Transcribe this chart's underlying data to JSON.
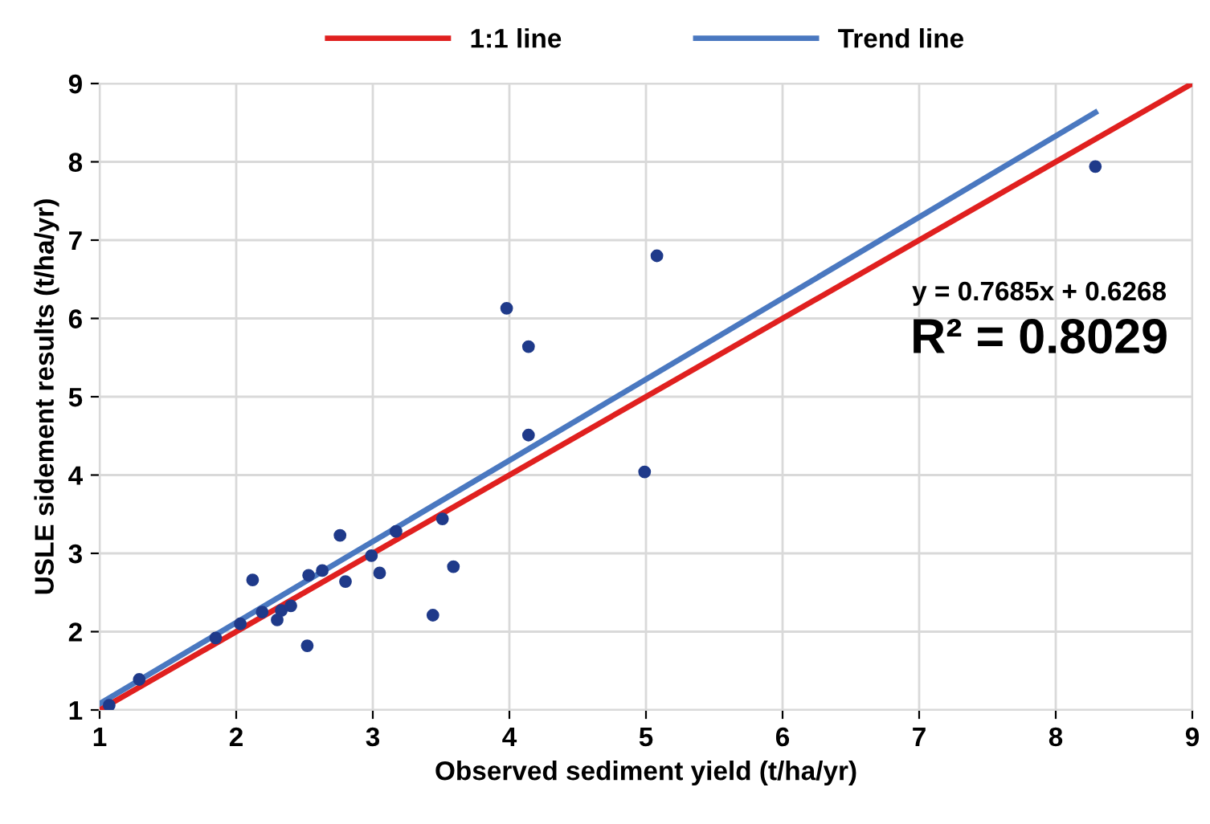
{
  "chart_data": {
    "type": "scatter",
    "xlabel": "Observed sediment yield (t/ha/yr)",
    "ylabel": "USLE sidement results (t/ha/yr)",
    "xlim": [
      1,
      9
    ],
    "ylim": [
      1,
      9
    ],
    "xticks": [
      1,
      2,
      3,
      4,
      5,
      6,
      7,
      8,
      9
    ],
    "yticks": [
      1,
      2,
      3,
      4,
      5,
      6,
      7,
      8,
      9
    ],
    "grid": true,
    "legend": "top",
    "series": [
      {
        "name": "1:1 line",
        "type": "line",
        "color": "#e0201f",
        "x": [
          1,
          9
        ],
        "values": [
          1,
          9
        ]
      },
      {
        "name": "Trend line",
        "type": "line",
        "color": "#4a78c0",
        "x": [
          1,
          8.29
        ],
        "values": [
          1.08,
          8.63
        ]
      },
      {
        "type": "scatter",
        "color": "#1f3a8a",
        "marker": "circle",
        "x": [
          1.07,
          1.29,
          1.85,
          2.03,
          2.12,
          2.19,
          2.3,
          2.33,
          2.4,
          2.52,
          2.53,
          2.63,
          2.76,
          2.8,
          2.99,
          3.05,
          3.17,
          3.44,
          3.51,
          3.59,
          3.98,
          4.14,
          4.14,
          4.99,
          5.08,
          8.29
        ],
        "values": [
          1.06,
          1.39,
          1.92,
          2.1,
          2.66,
          2.25,
          2.15,
          2.27,
          2.33,
          1.82,
          2.72,
          2.78,
          3.23,
          2.64,
          2.97,
          2.75,
          3.28,
          2.21,
          3.44,
          2.83,
          6.13,
          5.64,
          4.51,
          4.04,
          6.8,
          7.94
        ]
      }
    ],
    "annotations": [
      "y = 0.7685x + 0.6268",
      "R² = 0.8029"
    ]
  }
}
